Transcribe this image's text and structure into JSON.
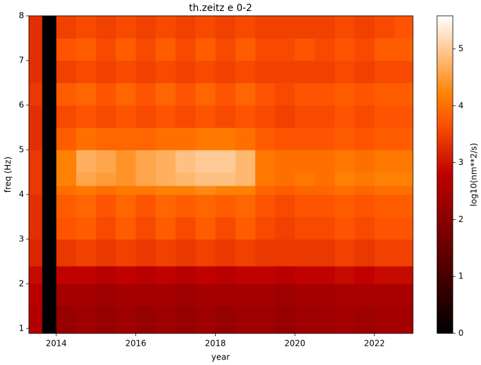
{
  "chart_data": {
    "type": "heatmap",
    "title": "th.zeitz e 0-2",
    "xlabel": "year",
    "ylabel": "freq (Hz)",
    "colorbar_label": "log10(nm**2/s)",
    "colormap": "gist_heat",
    "x_edges": [
      2013.31,
      2013.65,
      2014.0,
      2014.5,
      2015.0,
      2015.5,
      2016.0,
      2016.5,
      2017.0,
      2017.5,
      2018.0,
      2018.5,
      2019.0,
      2019.5,
      2020.0,
      2020.5,
      2021.0,
      2021.5,
      2022.0,
      2022.5,
      2022.97
    ],
    "y_edges": [
      0.89,
      1.5,
      2.0,
      2.4,
      3.0,
      3.5,
      4.0,
      4.2,
      4.5,
      5.0,
      5.5,
      6.0,
      6.5,
      7.0,
      7.5,
      8.0
    ],
    "z": [
      [
        2.6,
        0,
        2.2,
        2.3,
        2.2,
        2.3,
        2.2,
        2.3,
        2.2,
        2.3,
        2.2,
        2.3,
        2.3,
        2.2,
        2.3,
        2.3,
        2.4,
        2.3,
        2.4,
        2.4
      ],
      [
        2.7,
        0,
        2.4,
        2.4,
        2.3,
        2.4,
        2.4,
        2.4,
        2.3,
        2.4,
        2.4,
        2.4,
        2.4,
        2.3,
        2.4,
        2.4,
        2.5,
        2.5,
        2.5,
        2.5
      ],
      [
        2.9,
        0,
        2.8,
        2.8,
        2.7,
        2.8,
        2.7,
        2.8,
        2.7,
        2.8,
        2.7,
        2.8,
        2.8,
        2.7,
        2.8,
        2.8,
        2.9,
        2.8,
        2.9,
        2.9
      ],
      [
        3.2,
        0,
        3.4,
        3.5,
        3.4,
        3.5,
        3.4,
        3.5,
        3.4,
        3.5,
        3.4,
        3.5,
        3.4,
        3.4,
        3.4,
        3.4,
        3.5,
        3.4,
        3.5,
        3.5
      ],
      [
        3.3,
        0,
        3.7,
        3.8,
        3.6,
        3.8,
        3.6,
        3.8,
        3.6,
        3.8,
        3.6,
        3.8,
        3.6,
        3.5,
        3.6,
        3.6,
        3.7,
        3.6,
        3.7,
        3.7
      ],
      [
        3.3,
        0,
        3.8,
        3.9,
        3.7,
        3.9,
        3.7,
        3.9,
        3.8,
        3.9,
        3.8,
        3.9,
        3.7,
        3.6,
        3.7,
        3.7,
        3.8,
        3.7,
        3.8,
        3.8
      ],
      [
        3.4,
        0,
        4.0,
        4.1,
        4.0,
        4.1,
        4.1,
        4.2,
        4.2,
        4.3,
        4.2,
        4.2,
        3.9,
        3.8,
        3.9,
        3.9,
        4.0,
        3.9,
        4.0,
        4.0
      ],
      [
        3.4,
        0,
        4.2,
        4.6,
        4.5,
        4.4,
        4.6,
        4.7,
        4.8,
        4.9,
        4.9,
        4.8,
        4.1,
        4.0,
        4.1,
        4.0,
        4.2,
        4.1,
        4.2,
        4.2
      ],
      [
        3.4,
        0,
        4.2,
        4.7,
        4.6,
        4.4,
        4.6,
        4.7,
        4.9,
        5.0,
        5.0,
        4.8,
        4.1,
        4.0,
        4.0,
        4.0,
        4.1,
        4.0,
        4.1,
        4.1
      ],
      [
        3.3,
        0,
        3.8,
        4.0,
        3.9,
        3.9,
        3.9,
        4.0,
        4.0,
        4.1,
        4.1,
        4.0,
        3.8,
        3.7,
        3.7,
        3.7,
        3.8,
        3.7,
        3.8,
        3.8
      ],
      [
        3.3,
        0,
        3.6,
        3.7,
        3.6,
        3.7,
        3.6,
        3.7,
        3.6,
        3.7,
        3.6,
        3.7,
        3.6,
        3.5,
        3.6,
        3.6,
        3.7,
        3.6,
        3.7,
        3.7
      ],
      [
        3.4,
        0,
        3.8,
        3.9,
        3.7,
        3.9,
        3.7,
        3.9,
        3.7,
        3.9,
        3.7,
        3.9,
        3.7,
        3.6,
        3.7,
        3.7,
        3.8,
        3.7,
        3.8,
        3.8
      ],
      [
        3.3,
        0,
        3.5,
        3.6,
        3.5,
        3.6,
        3.5,
        3.6,
        3.5,
        3.6,
        3.5,
        3.6,
        3.5,
        3.5,
        3.5,
        3.5,
        3.6,
        3.5,
        3.6,
        3.6
      ],
      [
        3.3,
        0,
        3.7,
        3.8,
        3.6,
        3.8,
        3.6,
        3.8,
        3.6,
        3.8,
        3.6,
        3.8,
        3.6,
        3.6,
        3.7,
        3.6,
        3.7,
        3.6,
        3.8,
        3.8
      ],
      [
        3.3,
        0,
        3.5,
        3.6,
        3.5,
        3.6,
        3.5,
        3.6,
        3.5,
        3.6,
        3.5,
        3.6,
        3.5,
        3.5,
        3.5,
        3.5,
        3.6,
        3.5,
        3.6,
        3.7
      ]
    ],
    "xlim": [
      2013.31,
      2022.97
    ],
    "ylim": [
      0.89,
      8
    ],
    "xticks": [
      2014,
      2016,
      2018,
      2020,
      2022
    ],
    "yticks": [
      1,
      2,
      3,
      4,
      5,
      6,
      7,
      8
    ],
    "clim": [
      0,
      5.58
    ],
    "cticks": [
      0,
      1,
      2,
      3,
      4,
      5
    ]
  }
}
